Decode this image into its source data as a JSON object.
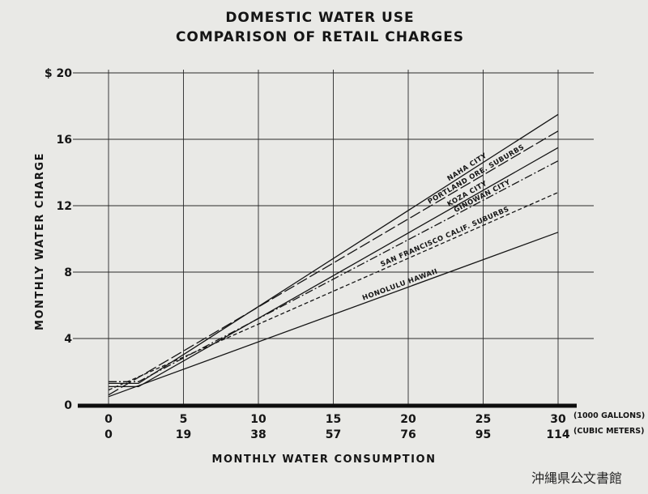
{
  "chart_data": {
    "type": "line",
    "title": "DOMESTIC WATER USE",
    "subtitle": "COMPARISON OF RETAIL CHARGES",
    "xlabel": "MONTHLY WATER CONSUMPTION",
    "ylabel": "MONTHLY WATER CHARGE",
    "xlim": [
      0,
      30
    ],
    "ylim": [
      0,
      20
    ],
    "y_ticks": [
      {
        "value": 0,
        "label": "0"
      },
      {
        "value": 4,
        "label": "4"
      },
      {
        "value": 8,
        "label": "8"
      },
      {
        "value": 12,
        "label": "12"
      },
      {
        "value": 16,
        "label": "16"
      },
      {
        "value": 20,
        "label": "$ 20"
      }
    ],
    "x_ticks": [
      {
        "value": 0,
        "gallons": "0",
        "cubic": "0"
      },
      {
        "value": 5,
        "gallons": "5",
        "cubic": "19"
      },
      {
        "value": 10,
        "gallons": "10",
        "cubic": "38"
      },
      {
        "value": 15,
        "gallons": "15",
        "cubic": "57"
      },
      {
        "value": 20,
        "gallons": "20",
        "cubic": "76"
      },
      {
        "value": 25,
        "gallons": "25",
        "cubic": "95"
      },
      {
        "value": 30,
        "gallons": "30",
        "cubic": "114"
      }
    ],
    "x_unit_gallons": "(1000 GALLONS)",
    "x_unit_cubic": "(CUBIC METERS)",
    "grid": true,
    "series": [
      {
        "name": "NAHA CITY",
        "style": "solid",
        "points": [
          [
            0,
            1.3
          ],
          [
            2,
            1.3
          ],
          [
            30,
            17.5
          ]
        ]
      },
      {
        "name": "PORTLAND ORE. SUBURBS",
        "style": "long-dash",
        "points": [
          [
            0,
            0.6
          ],
          [
            30,
            16.5
          ]
        ]
      },
      {
        "name": "KOZA CITY",
        "style": "solid",
        "points": [
          [
            0,
            1.1
          ],
          [
            2,
            1.1
          ],
          [
            30,
            15.5
          ]
        ]
      },
      {
        "name": "GINOWAN CITY",
        "style": "dash-dot",
        "points": [
          [
            0,
            1.4
          ],
          [
            2,
            1.4
          ],
          [
            30,
            14.7
          ]
        ]
      },
      {
        "name": "SAN FRANCISCO CALIF. SUBURBS",
        "style": "short-dash",
        "points": [
          [
            0,
            0.9
          ],
          [
            30,
            12.8
          ]
        ]
      },
      {
        "name": "HONOLULU HAWAII",
        "style": "solid",
        "points": [
          [
            0,
            0.5
          ],
          [
            30,
            10.4
          ]
        ]
      }
    ]
  },
  "watermark": "沖縄県公文書館"
}
